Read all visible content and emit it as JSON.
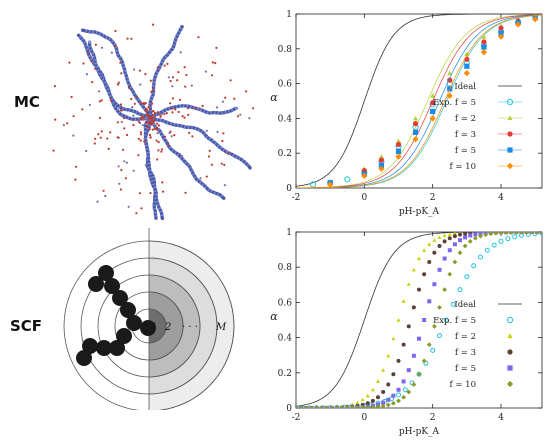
{
  "labels": {
    "mc": "MC",
    "scf": "SCF"
  },
  "scf_schematic": {
    "tick_1": "1",
    "tick_2": "2",
    "tick_dots": "· · ·",
    "tick_m": "M"
  },
  "chart_data": [
    {
      "type": "line+scatter",
      "panel": "top (MC)",
      "xlabel": "pH-pK_A",
      "ylabel": "α",
      "xlim": [
        -2,
        5.2
      ],
      "ylim": [
        0,
        1
      ],
      "xticks": [
        "-2",
        "0",
        "2",
        "4"
      ],
      "yticks": [
        "0",
        "0.2",
        "0.4",
        "0.6",
        "0.8",
        "1"
      ],
      "legend_position": "right",
      "series": [
        {
          "name": "Ideal",
          "kind": "line",
          "color": "#333333",
          "curve": {
            "pKshift": 0,
            "n": 1
          }
        },
        {
          "name": "Exp. f = 5",
          "kind": "open-circle",
          "color": "#26c6da",
          "points": [
            [
              -1.5,
              0.02
            ],
            [
              -1,
              0.03
            ],
            [
              -0.5,
              0.05
            ],
            [
              0,
              0.09
            ],
            [
              0.5,
              0.15
            ],
            [
              1,
              0.24
            ],
            [
              1.5,
              0.35
            ],
            [
              2,
              0.48
            ],
            [
              2.5,
              0.6
            ],
            [
              3,
              0.72
            ],
            [
              3.5,
              0.82
            ],
            [
              4,
              0.9
            ],
            [
              4.5,
              0.95
            ]
          ],
          "curve": {
            "pKshift": 2.4,
            "n": 0.78
          }
        },
        {
          "name": "f = 2",
          "kind": "triangle",
          "color": "#b5d43a",
          "points": [
            [
              -1,
              0.03
            ],
            [
              0,
              0.11
            ],
            [
              0.5,
              0.18
            ],
            [
              1,
              0.27
            ],
            [
              1.5,
              0.4
            ],
            [
              2,
              0.53
            ],
            [
              2.5,
              0.66
            ],
            [
              3,
              0.77
            ],
            [
              3.5,
              0.87
            ],
            [
              4,
              0.93
            ],
            [
              4.5,
              0.97
            ],
            [
              5,
              0.99
            ]
          ],
          "curve": {
            "pKshift": 1.85,
            "n": 0.78
          }
        },
        {
          "name": "f = 3",
          "kind": "circle",
          "color": "#e53935",
          "points": [
            [
              -1,
              0.03
            ],
            [
              0,
              0.1
            ],
            [
              0.5,
              0.16
            ],
            [
              1,
              0.25
            ],
            [
              1.5,
              0.37
            ],
            [
              2,
              0.49
            ],
            [
              2.5,
              0.62
            ],
            [
              3,
              0.74
            ],
            [
              3.5,
              0.84
            ],
            [
              4,
              0.92
            ],
            [
              4.5,
              0.96
            ],
            [
              5,
              0.98
            ]
          ],
          "curve": {
            "pKshift": 2.0,
            "n": 0.78
          }
        },
        {
          "name": "f = 5",
          "kind": "square",
          "color": "#1e88e5",
          "points": [
            [
              -1,
              0.03
            ],
            [
              0,
              0.08
            ],
            [
              0.5,
              0.13
            ],
            [
              1,
              0.21
            ],
            [
              1.5,
              0.32
            ],
            [
              2,
              0.44
            ],
            [
              2.5,
              0.57
            ],
            [
              3,
              0.7
            ],
            [
              3.5,
              0.81
            ],
            [
              4,
              0.89
            ],
            [
              4.5,
              0.95
            ],
            [
              5,
              0.98
            ]
          ],
          "curve": {
            "pKshift": 2.2,
            "n": 0.78
          }
        },
        {
          "name": "f = 10",
          "kind": "diamond",
          "color": "#fb8c00",
          "points": [
            [
              -1,
              0.02
            ],
            [
              0,
              0.07
            ],
            [
              0.5,
              0.11
            ],
            [
              1,
              0.18
            ],
            [
              1.5,
              0.28
            ],
            [
              2,
              0.4
            ],
            [
              2.5,
              0.53
            ],
            [
              3,
              0.66
            ],
            [
              3.5,
              0.78
            ],
            [
              4,
              0.87
            ],
            [
              4.5,
              0.94
            ],
            [
              5,
              0.97
            ]
          ],
          "curve": {
            "pKshift": 2.35,
            "n": 0.78
          }
        }
      ]
    },
    {
      "type": "line+scatter",
      "panel": "bottom (SCF)",
      "xlabel": "pH-pK_A",
      "ylabel": "α",
      "xlim": [
        -2,
        5.2
      ],
      "ylim": [
        0,
        1
      ],
      "xticks": [
        "-2",
        "0",
        "2",
        "4"
      ],
      "yticks": [
        "0",
        "0.2",
        "0.4",
        "0.6",
        "0.8",
        "1"
      ],
      "legend_position": "right",
      "series": [
        {
          "name": "Ideal",
          "kind": "line",
          "color": "#333333",
          "curve": {
            "pKshift": 0,
            "n": 1
          }
        },
        {
          "name": "Exp. f = 5",
          "kind": "open-circle",
          "color": "#26c6da",
          "curve": {
            "pKshift": 2.4,
            "n": 0.78
          }
        },
        {
          "name": "f = 2",
          "kind": "triangle",
          "color": "#c6d200",
          "curve": {
            "pKshift": 1.0,
            "n": 1.25
          }
        },
        {
          "name": "f = 3",
          "kind": "circle",
          "color": "#5d4037",
          "curve": {
            "pKshift": 1.35,
            "n": 1.25
          }
        },
        {
          "name": "f = 5",
          "kind": "square",
          "color": "#7b68ee",
          "curve": {
            "pKshift": 1.75,
            "n": 1.25
          }
        },
        {
          "name": "f = 10",
          "kind": "diamond",
          "color": "#8a9a2a",
          "curve": {
            "pKshift": 2.1,
            "n": 1.25
          }
        }
      ]
    }
  ]
}
